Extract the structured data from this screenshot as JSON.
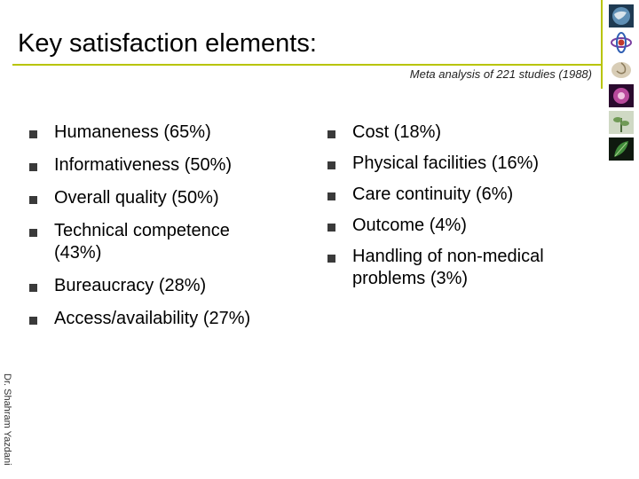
{
  "slide": {
    "title": "Key satisfaction elements:",
    "subtitle": "Meta analysis of 221 studies (1988)",
    "left_items": [
      "Humaneness (65%)",
      "Informativeness (50%)",
      "Overall quality (50%)",
      "Technical competence (43%)",
      "Bureaucracy (28%)",
      "Access/availability (27%)"
    ],
    "right_items": [
      "Cost (18%)",
      "Physical facilities (16%)",
      "Care continuity (6%)",
      "Outcome (4%)",
      "Handling of non-medical problems (3%)"
    ],
    "author": "Dr. Shahram Yazdani"
  },
  "decor": {
    "accent_color": "#b8c400",
    "bullet_color": "#3a3a3a",
    "thumbnails": [
      "globe-image-icon",
      "atom-image-icon",
      "shell-image-icon",
      "cell-image-icon",
      "plant-image-icon",
      "leaf-image-icon"
    ]
  }
}
